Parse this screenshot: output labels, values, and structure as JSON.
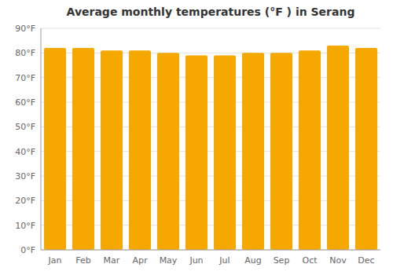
{
  "chart_data": {
    "type": "bar",
    "title": "Average monthly temperatures (°F ) in Serang",
    "categories": [
      "Jan",
      "Feb",
      "Mar",
      "Apr",
      "May",
      "Jun",
      "Jul",
      "Aug",
      "Sep",
      "Oct",
      "Nov",
      "Dec"
    ],
    "values": [
      82,
      82,
      81,
      81,
      80,
      79,
      79,
      80,
      80,
      81,
      83,
      82
    ],
    "color": "#F5A800",
    "ylim": [
      0,
      90
    ],
    "yticks": [
      {
        "value": 0,
        "label": "0°F"
      },
      {
        "value": 10,
        "label": "10°F"
      },
      {
        "value": 20,
        "label": "20°F"
      },
      {
        "value": 30,
        "label": "30°F"
      },
      {
        "value": 40,
        "label": "40°F"
      },
      {
        "value": 50,
        "label": "50°F"
      },
      {
        "value": 60,
        "label": "60°F"
      },
      {
        "value": 70,
        "label": "70°F"
      },
      {
        "value": 80,
        "label": "80°F"
      },
      {
        "value": 90,
        "label": "90°F"
      }
    ],
    "grid": true
  }
}
